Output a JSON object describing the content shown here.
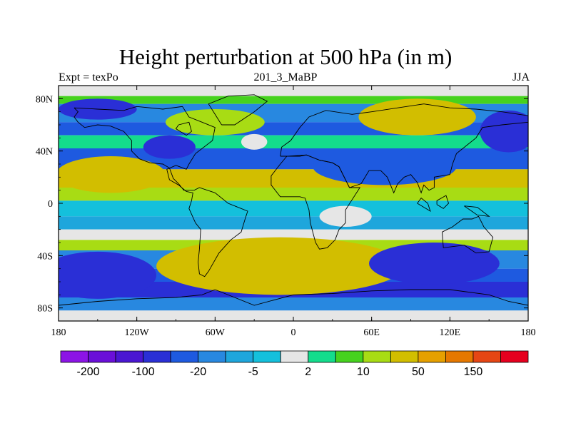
{
  "chart_data": {
    "type": "heatmap",
    "title": "Height perturbation at 500 hPa (in m)",
    "left_label": "Expt = texPo",
    "center_label": "201_3_MaBP",
    "right_label": "JJA",
    "xlim": [
      -180,
      180
    ],
    "ylim": [
      -90,
      90
    ],
    "x_ticks": [
      {
        "value": -180,
        "label": "180"
      },
      {
        "value": -120,
        "label": "120W"
      },
      {
        "value": -60,
        "label": "60W"
      },
      {
        "value": 0,
        "label": "0"
      },
      {
        "value": 60,
        "label": "60E"
      },
      {
        "value": 120,
        "label": "120E"
      },
      {
        "value": 180,
        "label": "180"
      }
    ],
    "y_ticks": [
      {
        "value": 80,
        "label": "80N"
      },
      {
        "value": 40,
        "label": "40N"
      },
      {
        "value": 0,
        "label": "0"
      },
      {
        "value": -40,
        "label": "40S"
      },
      {
        "value": -80,
        "label": "80S"
      }
    ],
    "colorbar": {
      "colors": [
        "#8c14e6",
        "#6a0fd8",
        "#4a16d2",
        "#2a2fd6",
        "#1e5ae0",
        "#2888e0",
        "#1ea6dc",
        "#14c0dc",
        "#e6e6e6",
        "#14dc8c",
        "#46d21e",
        "#a8dc14",
        "#d2be00",
        "#e6a000",
        "#e67800",
        "#e64614",
        "#e6001e"
      ],
      "labels": [
        {
          "boundary": 1,
          "text": "-200"
        },
        {
          "boundary": 3,
          "text": "-100"
        },
        {
          "boundary": 5,
          "text": "-20"
        },
        {
          "boundary": 7,
          "text": "-5"
        },
        {
          "boundary": 9,
          "text": "2"
        },
        {
          "boundary": 11,
          "text": "10"
        },
        {
          "boundary": 13,
          "text": "50"
        },
        {
          "boundary": 15,
          "text": "150"
        }
      ]
    },
    "field": {
      "base": [
        {
          "lat": 90,
          "level": 8
        },
        {
          "lat": 82,
          "level": 10
        },
        {
          "lat": 76,
          "level": 5
        },
        {
          "lat": 62,
          "level": 4
        },
        {
          "lat": 52,
          "level": 9
        },
        {
          "lat": 42,
          "level": 4
        },
        {
          "lat": 26,
          "level": 12
        },
        {
          "lat": 12,
          "level": 11
        },
        {
          "lat": 2,
          "level": 7
        },
        {
          "lat": -10,
          "level": 6
        },
        {
          "lat": -20,
          "level": 8
        },
        {
          "lat": -28,
          "level": 11
        },
        {
          "lat": -36,
          "level": 5
        },
        {
          "lat": -50,
          "level": 4
        },
        {
          "lat": -60,
          "level": 3
        },
        {
          "lat": -72,
          "level": 5
        },
        {
          "lat": -82,
          "level": 8
        },
        {
          "lat": -90,
          "level": 7
        }
      ],
      "blobs": [
        {
          "lon": -15,
          "lat": -55,
          "rlon": 32,
          "rlat": 10,
          "level": 16
        },
        {
          "lon": -20,
          "lat": -50,
          "rlon": 55,
          "rlat": 17,
          "level": 14
        },
        {
          "lon": -10,
          "lat": -48,
          "rlon": 95,
          "rlat": 22,
          "level": 12
        },
        {
          "lon": 110,
          "lat": -48,
          "rlon": 24,
          "rlat": 10,
          "level": 1
        },
        {
          "lon": 108,
          "lat": -46,
          "rlon": 50,
          "rlat": 16,
          "level": 3
        },
        {
          "lon": -150,
          "lat": -55,
          "rlon": 45,
          "rlat": 18,
          "level": 3
        },
        {
          "lon": 75,
          "lat": 27,
          "rlon": 26,
          "rlat": 8,
          "level": 2
        },
        {
          "lon": 70,
          "lat": 28,
          "rlon": 55,
          "rlat": 14,
          "level": 4
        },
        {
          "lon": -95,
          "lat": 43,
          "rlon": 20,
          "rlat": 9,
          "level": 3
        },
        {
          "lon": 165,
          "lat": 55,
          "rlon": 22,
          "rlat": 16,
          "level": 3
        },
        {
          "lon": 100,
          "lat": 68,
          "rlon": 22,
          "rlat": 8,
          "level": 14
        },
        {
          "lon": 95,
          "lat": 66,
          "rlon": 45,
          "rlat": 14,
          "level": 12
        },
        {
          "lon": -145,
          "lat": 20,
          "rlon": 22,
          "rlat": 8,
          "level": 13
        },
        {
          "lon": -140,
          "lat": 22,
          "rlon": 42,
          "rlat": 14,
          "level": 12
        },
        {
          "lon": -30,
          "lat": 47,
          "rlon": 10,
          "rlat": 6,
          "level": 8
        },
        {
          "lon": -150,
          "lat": 72,
          "rlon": 30,
          "rlat": 8,
          "level": 3
        },
        {
          "lon": -60,
          "lat": 62,
          "rlon": 38,
          "rlat": 10,
          "level": 11
        },
        {
          "lon": 40,
          "lat": -10,
          "rlon": 20,
          "rlat": 8,
          "level": 8
        }
      ]
    },
    "coastlines": [
      [
        [
          -168,
          73
        ],
        [
          -150,
          72
        ],
        [
          -130,
          71
        ],
        [
          -120,
          74
        ],
        [
          -100,
          72
        ],
        [
          -85,
          74
        ],
        [
          -80,
          66
        ],
        [
          -70,
          62
        ],
        [
          -60,
          58
        ],
        [
          -62,
          48
        ],
        [
          -75,
          38
        ],
        [
          -80,
          30
        ],
        [
          -82,
          26
        ],
        [
          -90,
          29
        ],
        [
          -97,
          26
        ],
        [
          -95,
          18
        ],
        [
          -88,
          14
        ],
        [
          -82,
          9
        ],
        [
          -77,
          8
        ],
        [
          -78,
          2
        ],
        [
          -80,
          -4
        ],
        [
          -75,
          -15
        ],
        [
          -71,
          -20
        ],
        [
          -72,
          -35
        ],
        [
          -73,
          -45
        ],
        [
          -72,
          -54
        ],
        [
          -68,
          -56
        ],
        [
          -65,
          -52
        ],
        [
          -57,
          -38
        ],
        [
          -48,
          -28
        ],
        [
          -40,
          -22
        ],
        [
          -37,
          -12
        ],
        [
          -35,
          -6
        ],
        [
          -45,
          -2
        ],
        [
          -50,
          0
        ],
        [
          -60,
          8
        ],
        [
          -72,
          12
        ],
        [
          -76,
          10
        ],
        [
          -84,
          10
        ],
        [
          -88,
          15
        ],
        [
          -92,
          19
        ],
        [
          -95,
          27
        ],
        [
          -100,
          30
        ],
        [
          -110,
          31
        ],
        [
          -118,
          34
        ],
        [
          -124,
          40
        ],
        [
          -124,
          48
        ],
        [
          -130,
          55
        ],
        [
          -140,
          59
        ],
        [
          -150,
          60
        ],
        [
          -160,
          58
        ],
        [
          -165,
          62
        ],
        [
          -168,
          66
        ],
        [
          -165,
          70
        ],
        [
          -168,
          73
        ]
      ],
      [
        [
          -55,
          60
        ],
        [
          -45,
          60
        ],
        [
          -30,
          70
        ],
        [
          -20,
          78
        ],
        [
          -30,
          83
        ],
        [
          -50,
          82
        ],
        [
          -65,
          76
        ],
        [
          -60,
          68
        ],
        [
          -55,
          60
        ]
      ],
      [
        [
          -10,
          36
        ],
        [
          -9,
          43
        ],
        [
          -2,
          48
        ],
        [
          5,
          58
        ],
        [
          12,
          66
        ],
        [
          25,
          71
        ],
        [
          45,
          68
        ],
        [
          60,
          70
        ],
        [
          80,
          73
        ],
        [
          100,
          76
        ],
        [
          120,
          73
        ],
        [
          140,
          72
        ],
        [
          160,
          70
        ],
        [
          180,
          67
        ],
        [
          180,
          62
        ],
        [
          160,
          60
        ],
        [
          145,
          58
        ],
        [
          140,
          50
        ],
        [
          130,
          42
        ],
        [
          125,
          38
        ],
        [
          122,
          30
        ],
        [
          120,
          22
        ],
        [
          108,
          20
        ],
        [
          108,
          12
        ],
        [
          104,
          10
        ],
        [
          100,
          14
        ],
        [
          98,
          8
        ],
        [
          95,
          16
        ],
        [
          90,
          22
        ],
        [
          85,
          20
        ],
        [
          80,
          15
        ],
        [
          77,
          8
        ],
        [
          72,
          20
        ],
        [
          67,
          25
        ],
        [
          58,
          25
        ],
        [
          52,
          15
        ],
        [
          43,
          12
        ],
        [
          35,
          28
        ],
        [
          30,
          31
        ],
        [
          20,
          33
        ],
        [
          10,
          37
        ],
        [
          5,
          36
        ],
        [
          -5,
          36
        ],
        [
          -10,
          36
        ]
      ],
      [
        [
          -17,
          21
        ],
        [
          -17,
          14
        ],
        [
          -10,
          5
        ],
        [
          5,
          5
        ],
        [
          9,
          4
        ],
        [
          12,
          -5
        ],
        [
          13,
          -15
        ],
        [
          17,
          -30
        ],
        [
          20,
          -35
        ],
        [
          26,
          -34
        ],
        [
          32,
          -28
        ],
        [
          35,
          -20
        ],
        [
          40,
          -15
        ],
        [
          40,
          -5
        ],
        [
          51,
          12
        ],
        [
          43,
          12
        ],
        [
          35,
          28
        ],
        [
          30,
          31
        ],
        [
          20,
          33
        ],
        [
          10,
          37
        ],
        [
          -5,
          36
        ],
        [
          -10,
          30
        ],
        [
          -17,
          21
        ]
      ],
      [
        [
          114,
          -22
        ],
        [
          122,
          -18
        ],
        [
          130,
          -12
        ],
        [
          137,
          -12
        ],
        [
          142,
          -10
        ],
        [
          146,
          -18
        ],
        [
          153,
          -26
        ],
        [
          150,
          -37
        ],
        [
          140,
          -38
        ],
        [
          131,
          -32
        ],
        [
          115,
          -34
        ],
        [
          114,
          -22
        ]
      ],
      [
        [
          -60,
          -66
        ],
        [
          -30,
          -78
        ],
        [
          0,
          -70
        ],
        [
          30,
          -69
        ],
        [
          60,
          -67
        ],
        [
          90,
          -66
        ],
        [
          120,
          -66
        ],
        [
          150,
          -70
        ],
        [
          165,
          -75
        ],
        [
          180,
          -78
        ],
        [
          180,
          -90
        ],
        [
          -180,
          -90
        ],
        [
          -180,
          -78
        ],
        [
          -150,
          -75
        ],
        [
          -120,
          -73
        ],
        [
          -90,
          -72
        ],
        [
          -70,
          -70
        ],
        [
          -60,
          -66
        ]
      ],
      [
        [
          -88,
          60
        ],
        [
          -80,
          62
        ],
        [
          -78,
          55
        ],
        [
          -82,
          52
        ],
        [
          -90,
          57
        ],
        [
          -88,
          60
        ]
      ],
      [
        [
          95,
          0
        ],
        [
          100,
          -3
        ],
        [
          105,
          -6
        ],
        [
          103,
          0
        ],
        [
          98,
          4
        ],
        [
          95,
          0
        ]
      ],
      [
        [
          110,
          -1
        ],
        [
          115,
          -4
        ],
        [
          119,
          0
        ],
        [
          117,
          6
        ],
        [
          110,
          2
        ],
        [
          110,
          -1
        ]
      ],
      [
        [
          131,
          -2
        ],
        [
          141,
          -3
        ],
        [
          150,
          -10
        ],
        [
          141,
          -9
        ],
        [
          131,
          -2
        ]
      ]
    ]
  }
}
